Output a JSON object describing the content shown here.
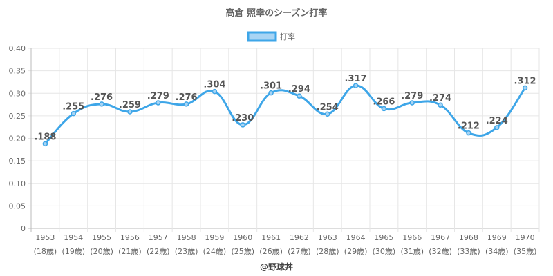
{
  "chart_data": {
    "type": "line",
    "title": "高倉 照幸のシーズン打率",
    "legend": {
      "position": "top",
      "label": "打率"
    },
    "categories": [
      "1953",
      "1954",
      "1955",
      "1956",
      "1957",
      "1958",
      "1959",
      "1960",
      "1961",
      "1962",
      "1963",
      "1964",
      "1965",
      "1966",
      "1967",
      "1968",
      "1969",
      "1970"
    ],
    "ages": [
      "(18歳)",
      "(19歳)",
      "(20歳)",
      "(21歳)",
      "(22歳)",
      "(23歳)",
      "(24歳)",
      "(25歳)",
      "(26歳)",
      "(27歳)",
      "(28歳)",
      "(29歳)",
      "(30歳)",
      "(31歳)",
      "(32歳)",
      "(33歳)",
      "(34歳)",
      "(35歳)"
    ],
    "series": [
      {
        "name": "打率",
        "values": [
          0.188,
          0.255,
          0.276,
          0.259,
          0.279,
          0.276,
          0.304,
          0.23,
          0.301,
          0.294,
          0.254,
          0.317,
          0.266,
          0.279,
          0.274,
          0.212,
          0.224,
          0.312
        ],
        "labels": [
          ".188",
          ".255",
          ".276",
          ".259",
          ".279",
          ".276",
          ".304",
          ".230",
          ".301",
          ".294",
          ".254",
          ".317",
          ".266",
          ".279",
          ".274",
          ".212",
          ".224",
          ".312"
        ]
      }
    ],
    "yticks": [
      "0",
      "0.05",
      "0.10",
      "0.15",
      "0.20",
      "0.25",
      "0.30",
      "0.35",
      "0.40"
    ],
    "ylim": [
      0,
      0.4
    ],
    "grid": true,
    "colors": {
      "line": "#3ea6e8",
      "fill": "#a8d4f4",
      "grid": "#e6e6e6"
    }
  },
  "credit": "@野球丼"
}
